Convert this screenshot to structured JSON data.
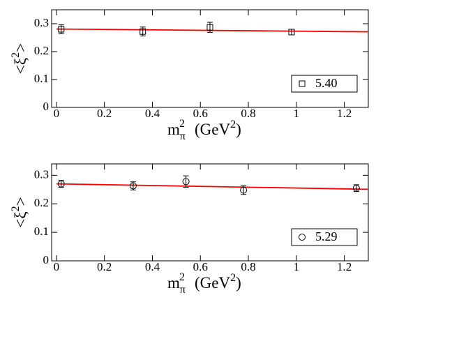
{
  "chart_data": [
    {
      "type": "scatter",
      "xlim": [
        -0.02,
        1.3
      ],
      "ylim": [
        0,
        0.35
      ],
      "xticks": [
        0,
        0.2,
        0.4,
        0.6,
        0.8,
        1,
        1.2
      ],
      "yticks": [
        0,
        0.1,
        0.2,
        0.3
      ],
      "xlabel_parts": [
        "m",
        "π",
        "2",
        "(GeV",
        "2",
        ")"
      ],
      "ylabel_parts": [
        "<ξ",
        "2",
        ">"
      ],
      "legend": "lower right",
      "series": [
        {
          "name": "5.40",
          "marker": "square",
          "color": "#000000",
          "x": [
            0.02,
            0.36,
            0.64,
            0.98
          ],
          "values": [
            0.28,
            0.272,
            0.287,
            0.27
          ],
          "errors": [
            0.016,
            0.016,
            0.018,
            0.01
          ]
        }
      ],
      "fit": {
        "color": "#ff0000",
        "x": [
          0,
          1.3
        ],
        "values": [
          0.281,
          0.271
        ]
      }
    },
    {
      "type": "scatter",
      "xlim": [
        -0.02,
        1.3
      ],
      "ylim": [
        0,
        0.34
      ],
      "xticks": [
        0,
        0.2,
        0.4,
        0.6,
        0.8,
        1,
        1.2
      ],
      "yticks": [
        0,
        0.1,
        0.2,
        0.3
      ],
      "xlabel_parts": [
        "m",
        "π",
        "2",
        "(GeV",
        "2",
        ")"
      ],
      "ylabel_parts": [
        "<ξ",
        "2",
        ">"
      ],
      "legend": "lower right",
      "series": [
        {
          "name": "5.29",
          "marker": "circle",
          "color": "#000000",
          "x": [
            0.02,
            0.32,
            0.54,
            0.78,
            1.25
          ],
          "values": [
            0.27,
            0.263,
            0.278,
            0.248,
            0.255
          ],
          "errors": [
            0.012,
            0.014,
            0.02,
            0.015,
            0.012
          ]
        }
      ],
      "fit": {
        "color": "#ff0000",
        "x": [
          0,
          1.3
        ],
        "values": [
          0.27,
          0.251
        ]
      }
    }
  ]
}
